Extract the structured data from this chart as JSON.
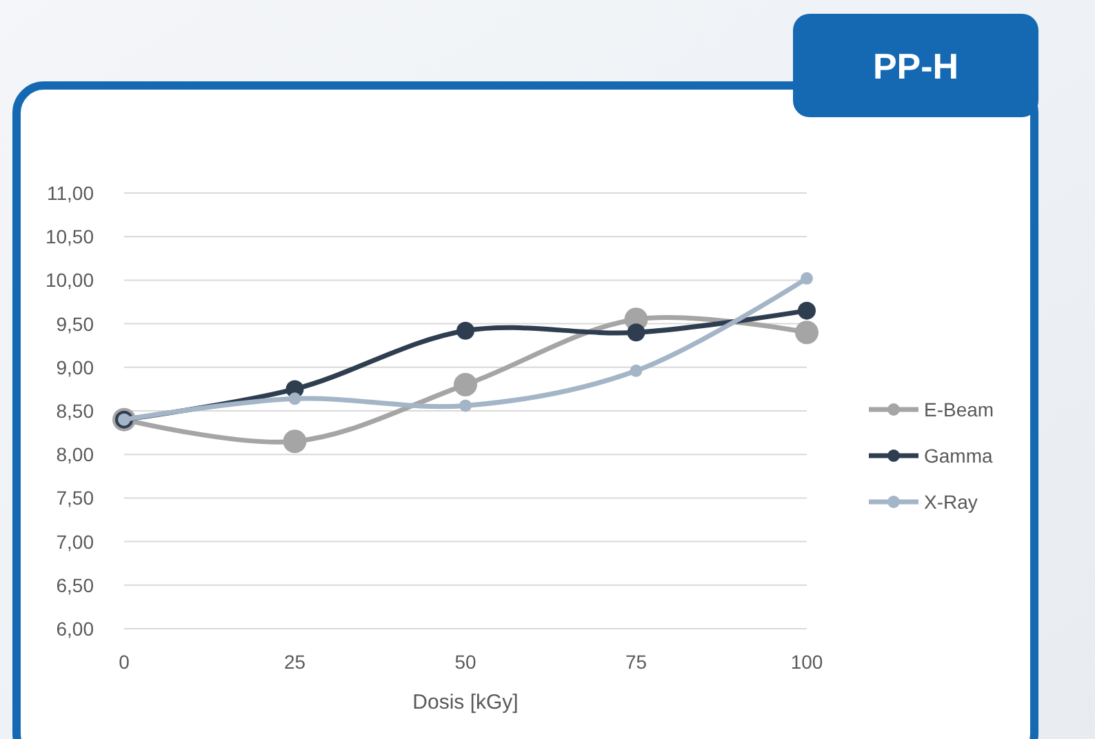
{
  "chart_data": {
    "type": "line",
    "title": "PP-H",
    "xlabel": "Dosis [kGy]",
    "x": [
      0,
      25,
      50,
      75,
      100
    ],
    "series": [
      {
        "name": "E-Beam",
        "color": "#a5a5a5",
        "values": [
          8.4,
          8.15,
          8.8,
          9.55,
          9.4
        ]
      },
      {
        "name": "Gamma",
        "color": "#2e3e50",
        "values": [
          8.4,
          8.75,
          9.42,
          9.4,
          9.65
        ]
      },
      {
        "name": "X-Ray",
        "color": "#a3b5c7",
        "values": [
          8.4,
          8.64,
          8.56,
          8.96,
          10.02
        ]
      }
    ],
    "xlim": [
      0,
      100
    ],
    "xticks": [
      0,
      25,
      50,
      75,
      100
    ],
    "ylim": [
      6,
      11
    ],
    "yticks": [
      {
        "value": 6,
        "label": "6,00"
      },
      {
        "value": 6.5,
        "label": "6,50"
      },
      {
        "value": 7,
        "label": "7,00"
      },
      {
        "value": 7.5,
        "label": "7,50"
      },
      {
        "value": 8,
        "label": "8,00"
      },
      {
        "value": 8.5,
        "label": "8,50"
      },
      {
        "value": 9,
        "label": "9,00"
      },
      {
        "value": 9.5,
        "label": "9,50"
      },
      {
        "value": 10,
        "label": "10,00"
      },
      {
        "value": 10.5,
        "label": "10,50"
      },
      {
        "value": 11,
        "label": "11,00"
      }
    ],
    "grid": "y",
    "legend": "right",
    "marker": "circle",
    "line_style": "solid"
  }
}
